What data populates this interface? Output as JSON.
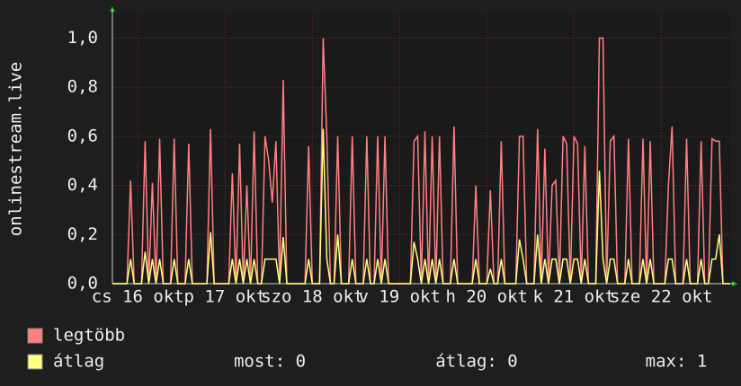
{
  "chart_data": {
    "type": "line",
    "ylabel": "onlinestream.live",
    "x": [
      5,
      6,
      7,
      8,
      9,
      10,
      11,
      12,
      13,
      14,
      15,
      16,
      17,
      18,
      19,
      20,
      21,
      22,
      23,
      24,
      25,
      26,
      27,
      28,
      29,
      30,
      31,
      32,
      33,
      34,
      35,
      36,
      37,
      38,
      39,
      40,
      41,
      42,
      43,
      44,
      45,
      46,
      47,
      48,
      49,
      50,
      51,
      52,
      53,
      54,
      55,
      56,
      57,
      58,
      59,
      60,
      61,
      62,
      63,
      64,
      65,
      66,
      67,
      68,
      69,
      70,
      71,
      72,
      73,
      74,
      75,
      76,
      77,
      78,
      79,
      80,
      81,
      82,
      83,
      84,
      85,
      86,
      87,
      88,
      89,
      90,
      91,
      92,
      93,
      94,
      95,
      96,
      97,
      98,
      99,
      100,
      101,
      102,
      103,
      104,
      105,
      106,
      107,
      108,
      109,
      110,
      111,
      112,
      113,
      114,
      115,
      116,
      117,
      118,
      119,
      120,
      121,
      122,
      123,
      124,
      125,
      126,
      127,
      128,
      129,
      130,
      131,
      132,
      133,
      134,
      135,
      136,
      137,
      138,
      139,
      140,
      141,
      142,
      143,
      144,
      145,
      146,
      147,
      148,
      149,
      150,
      151,
      152,
      153,
      154,
      155,
      156,
      157,
      158,
      159,
      160,
      161,
      162,
      163,
      164,
      165,
      166,
      167,
      168,
      169,
      170,
      171,
      172,
      173,
      174,
      175
    ],
    "series": [
      {
        "name": "legtöbb",
        "color": "#ff8080",
        "values": [
          0,
          0,
          0,
          0,
          0,
          0.42,
          0,
          0,
          0,
          0.58,
          0,
          0.41,
          0,
          0.59,
          0,
          0,
          0,
          0.59,
          0,
          0,
          0,
          0.57,
          0,
          0,
          0,
          0,
          0,
          0.63,
          0,
          0,
          0,
          0,
          0,
          0.45,
          0,
          0.57,
          0,
          0.4,
          0,
          0.62,
          0,
          0,
          0.6,
          0.5,
          0.33,
          0.58,
          0,
          0.83,
          0,
          0,
          0,
          0,
          0,
          0,
          0.56,
          0,
          0,
          0,
          1,
          0.6,
          0,
          0,
          0.6,
          0,
          0,
          0,
          0.6,
          0,
          0,
          0,
          0.6,
          0,
          0,
          0.6,
          0,
          0.6,
          0,
          0,
          0,
          0,
          0,
          0,
          0,
          0.58,
          0.6,
          0,
          0.62,
          0,
          0.6,
          0,
          0.6,
          0,
          0,
          0,
          0.64,
          0,
          0,
          0,
          0,
          0,
          0.4,
          0,
          0,
          0,
          0.38,
          0,
          0,
          0.58,
          0,
          0,
          0,
          0,
          0.6,
          0.6,
          0,
          0,
          0,
          0.63,
          0,
          0.55,
          0,
          0.4,
          0.42,
          0,
          0.6,
          0.57,
          0,
          0.6,
          0.57,
          0,
          0.56,
          0,
          0,
          0,
          1,
          1,
          0,
          0.58,
          0.6,
          0,
          0,
          0,
          0.59,
          0,
          0,
          0,
          0.59,
          0,
          0.58,
          0,
          0,
          0,
          0,
          0.4,
          0.64,
          0,
          0,
          0,
          0.59,
          0,
          0,
          0,
          0.58,
          0,
          0,
          0.59,
          0.58,
          0.58,
          0,
          0,
          0
        ]
      },
      {
        "name": "átlag",
        "color": "#ffff80",
        "values": [
          0,
          0,
          0,
          0,
          0,
          0.1,
          0,
          0,
          0,
          0.13,
          0,
          0.1,
          0,
          0.1,
          0,
          0,
          0,
          0.1,
          0,
          0,
          0,
          0.1,
          0,
          0,
          0,
          0,
          0,
          0.21,
          0,
          0,
          0,
          0,
          0,
          0.1,
          0,
          0.1,
          0,
          0.1,
          0,
          0.1,
          0,
          0,
          0.1,
          0.1,
          0.1,
          0.1,
          0,
          0.19,
          0,
          0,
          0,
          0,
          0,
          0,
          0.1,
          0,
          0,
          0,
          0.63,
          0.1,
          0,
          0,
          0.2,
          0,
          0,
          0,
          0.1,
          0,
          0,
          0,
          0.1,
          0,
          0,
          0.1,
          0,
          0.1,
          0,
          0,
          0,
          0,
          0,
          0,
          0,
          0.17,
          0.1,
          0,
          0.1,
          0,
          0.1,
          0,
          0.1,
          0,
          0,
          0,
          0.1,
          0,
          0,
          0,
          0,
          0,
          0.1,
          0,
          0,
          0,
          0.06,
          0,
          0,
          0.1,
          0,
          0,
          0,
          0,
          0.18,
          0.1,
          0,
          0,
          0,
          0.2,
          0,
          0.1,
          0,
          0.1,
          0.1,
          0,
          0.1,
          0.1,
          0,
          0.1,
          0.1,
          0,
          0.1,
          0,
          0,
          0,
          0.46,
          0.1,
          0,
          0.1,
          0.1,
          0,
          0,
          0,
          0.1,
          0,
          0,
          0,
          0.1,
          0,
          0.1,
          0,
          0,
          0,
          0,
          0.1,
          0.1,
          0,
          0,
          0,
          0.1,
          0,
          0,
          0,
          0.1,
          0,
          0,
          0.1,
          0.1,
          0.2,
          0,
          0,
          0
        ]
      }
    ],
    "xlim": [
      5,
      175
    ],
    "xticks": [
      {
        "value": 12,
        "label": "cs 16 okt"
      },
      {
        "value": 36,
        "label": "p 17 okt"
      },
      {
        "value": 60,
        "label": "szo 18 okt"
      },
      {
        "value": 84,
        "label": "v 19 okt"
      },
      {
        "value": 108,
        "label": "h 20 okt"
      },
      {
        "value": 132,
        "label": "k 21 okt"
      },
      {
        "value": 156,
        "label": "sze 22 okt"
      }
    ],
    "ylim": [
      0,
      1.1
    ],
    "yticks": [
      {
        "value": 0,
        "label": "0,0"
      },
      {
        "value": 0.2,
        "label": "0,2"
      },
      {
        "value": 0.4,
        "label": "0,4"
      },
      {
        "value": 0.6,
        "label": "0,6"
      },
      {
        "value": 0.8,
        "label": "0,8"
      },
      {
        "value": 1,
        "label": "1,0"
      }
    ],
    "grid": true,
    "stats": [
      "most: 0",
      "átlag: 0",
      "max: 1"
    ]
  }
}
